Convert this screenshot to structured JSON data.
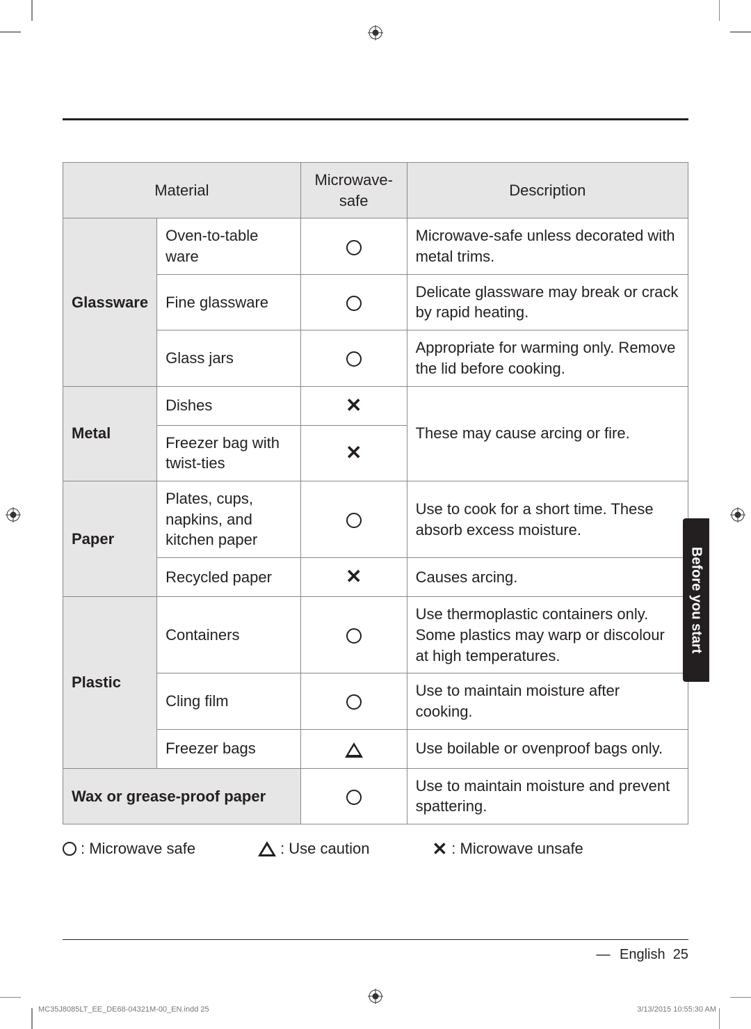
{
  "table": {
    "headers": {
      "material": "Material",
      "safe": "Microwave-safe",
      "description": "Description"
    },
    "rows": [
      {
        "cat": "Glassware",
        "catRowspan": 3,
        "sub": "Oven-to-table ware",
        "safe": "O",
        "desc": "Microwave-safe unless decorated with metal trims."
      },
      {
        "sub": "Fine glassware",
        "safe": "O",
        "desc": "Delicate glassware may break or crack by rapid heating."
      },
      {
        "sub": "Glass jars",
        "safe": "O",
        "desc": "Appropriate for warming only. Remove the lid before cooking."
      },
      {
        "cat": "Metal",
        "catRowspan": 2,
        "sub": "Dishes",
        "safe": "X",
        "descRowspan": 2,
        "desc": "These may cause arcing or fire."
      },
      {
        "sub": "Freezer bag with twist-ties",
        "safe": "X"
      },
      {
        "cat": "Paper",
        "catRowspan": 2,
        "sub": "Plates, cups, napkins, and kitchen paper",
        "safe": "O",
        "desc": "Use to cook for a short time. These absorb excess moisture."
      },
      {
        "sub": "Recycled paper",
        "safe": "X",
        "desc": "Causes arcing."
      },
      {
        "cat": "Plastic",
        "catRowspan": 3,
        "sub": "Containers",
        "safe": "O",
        "desc": "Use thermoplastic containers only. Some plastics may warp or discolour at high temperatures."
      },
      {
        "sub": "Cling film",
        "safe": "O",
        "desc": "Use to maintain moisture after cooking."
      },
      {
        "sub": "Freezer bags",
        "safe": "T",
        "desc": "Use boilable or ovenproof bags only."
      },
      {
        "full": "Wax or grease-proof paper",
        "safe": "O",
        "desc": "Use to maintain moisture and prevent spattering."
      }
    ]
  },
  "legend": {
    "safe": ": Microwave safe",
    "caution": ": Use caution",
    "unsafe": ": Microwave unsafe"
  },
  "sideTab": "Before you start",
  "footer": {
    "lang": "English",
    "page": "25"
  },
  "printFooter": {
    "left": "MC35J8085LT_EE_DE68-04321M-00_EN.indd   25",
    "right": "3/13/2015   10:55:30 AM"
  }
}
